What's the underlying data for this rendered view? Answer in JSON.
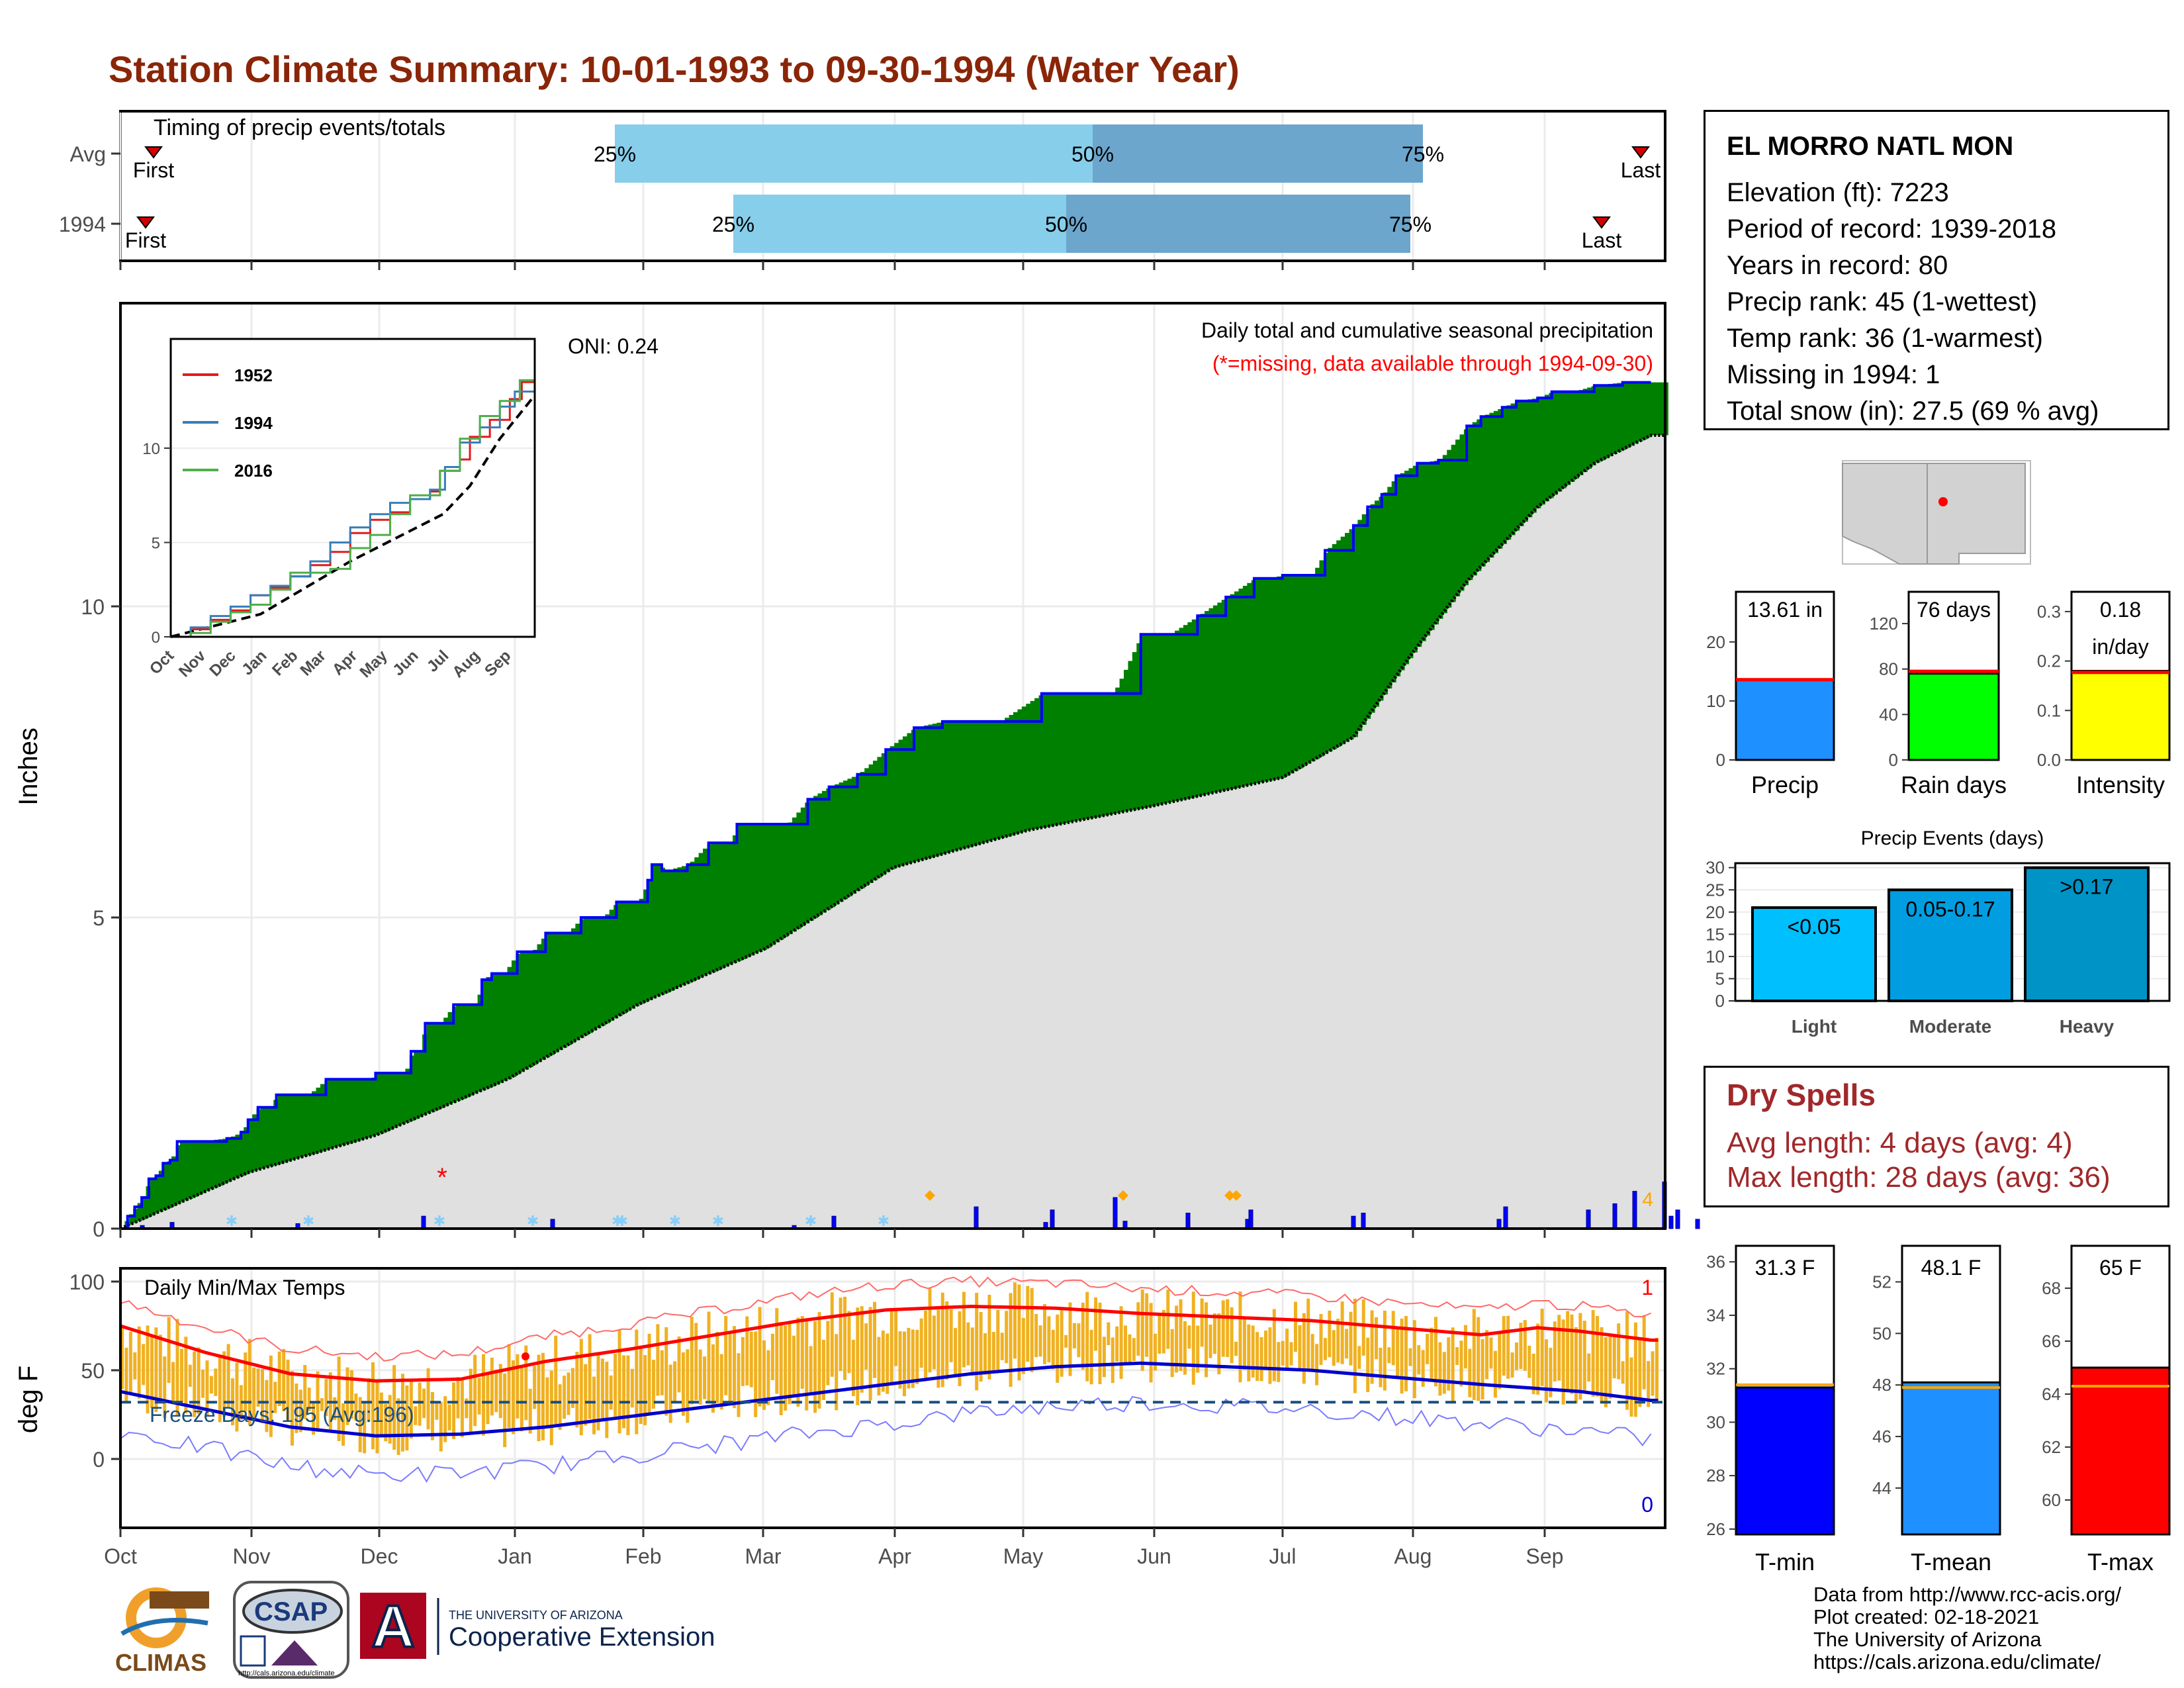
{
  "title": "Station Climate Summary: 10-01-1993 to 09-30-1994 (Water Year)",
  "station": {
    "name": "EL MORRO NATL MON",
    "lines": [
      "Elevation (ft): 7223",
      "Period of record: 1939-2018",
      "Years in record: 80",
      "Precip rank: 45 (1-wettest)",
      "Temp rank: 36 (1-warmest)",
      "Missing in 1994: 1",
      "Total snow (in): 27.5 (69 % avg)"
    ]
  },
  "dry_spells": {
    "title": "Dry Spells",
    "avg_length": "Avg length: 4 days (avg: 4)",
    "max_length": "Max length: 28 days (avg: 36)"
  },
  "credits": [
    "Data from http://www.rcc-acis.org/",
    "Plot created: 02-18-2021",
    "The University of Arizona",
    "https://cals.arizona.edu/climate/"
  ],
  "logos": {
    "climas": "CLIMAS",
    "csap": "CSAP",
    "csap_url": "http://cals.arizona.edu/climate",
    "ua_line1": "THE UNIVERSITY OF ARIZONA",
    "ua_line2": "Cooperative Extension",
    "ua_mark": "A"
  },
  "colors": {
    "title": "#8b2508",
    "above_avg_fill": "#008000",
    "below_avg_fill": "#7f5000",
    "cumulative_line": "#0000ff",
    "climatology_fill": "#e0e0e0",
    "timing_light": "#87ceeb",
    "timing_dark": "#6ca6cd",
    "temp_bar": "#f0b121",
    "tmax_avg": "#ff0000",
    "tmin_avg": "#0000cd"
  },
  "chart_data": [
    {
      "id": "timing",
      "type": "bar",
      "title": "Timing of precip events/totals",
      "rows": [
        {
          "label": "Avg",
          "first": "Oct 9",
          "p25": "Jan 26",
          "p50": "Apr 30",
          "p75": "Jul 31",
          "last": "Sep 29",
          "first_label": "First",
          "last_label": "Last",
          "pct_labels": [
            "25%",
            "50%",
            "75%"
          ]
        },
        {
          "label": "1994",
          "first": "Oct 7",
          "p25": "Feb 23",
          "p50": "Apr 21",
          "p75": "Jul 28",
          "last": "Sep 20",
          "first_label": "First",
          "last_label": "Last",
          "pct_labels": [
            "25%",
            "50%",
            "75%"
          ]
        }
      ]
    },
    {
      "id": "cumulative_precip",
      "type": "area",
      "title": "Daily total and cumulative seasonal precipitation",
      "subtitle": "(*=missing, data available through 1994-09-30)",
      "annotation_oni": "ONI: 0.24",
      "ylabel": "Inches",
      "yticks": [
        0,
        5,
        10
      ],
      "ylim": [
        0,
        14.8
      ],
      "x_months": [
        "Oct",
        "Nov",
        "Dec",
        "Jan",
        "Feb",
        "Mar",
        "Apr",
        "May",
        "Jun",
        "Jul",
        "Aug",
        "Sep"
      ],
      "max_daily_label": "4",
      "missing_marker": "*",
      "cumulative_1994": [
        [
          0,
          0
        ],
        [
          5,
          0.2
        ],
        [
          10,
          0.35
        ],
        [
          15,
          0.5
        ],
        [
          20,
          0.8
        ],
        [
          25,
          0.85
        ],
        [
          30,
          1.05
        ],
        [
          35,
          1.1
        ],
        [
          40,
          1.4
        ],
        [
          55,
          1.4
        ],
        [
          75,
          1.45
        ],
        [
          85,
          1.55
        ],
        [
          90,
          1.75
        ],
        [
          97,
          1.95
        ],
        [
          105,
          1.95
        ],
        [
          110,
          2.15
        ],
        [
          120,
          2.15
        ],
        [
          132,
          2.15
        ],
        [
          145,
          2.4
        ],
        [
          160,
          2.4
        ],
        [
          176,
          2.4
        ],
        [
          180,
          2.5
        ],
        [
          200,
          2.5
        ],
        [
          205,
          2.85
        ],
        [
          210,
          2.85
        ],
        [
          215,
          3.3
        ],
        [
          225,
          3.3
        ],
        [
          235,
          3.6
        ],
        [
          250,
          3.6
        ],
        [
          255,
          4.0
        ],
        [
          262,
          4.1
        ],
        [
          270,
          4.1
        ],
        [
          280,
          4.45
        ],
        [
          290,
          4.45
        ],
        [
          300,
          4.75
        ],
        [
          315,
          4.75
        ],
        [
          325,
          5.0
        ],
        [
          340,
          5.0
        ],
        [
          350,
          5.25
        ],
        [
          365,
          5.25
        ],
        [
          372,
          5.6
        ],
        [
          375,
          5.85
        ],
        [
          380,
          5.85
        ],
        [
          382,
          5.75
        ],
        [
          384,
          5.75
        ],
        [
          400,
          5.85
        ],
        [
          415,
          6.2
        ],
        [
          430,
          6.2
        ],
        [
          435,
          6.5
        ],
        [
          470,
          6.5
        ],
        [
          485,
          6.9
        ],
        [
          500,
          7.1
        ],
        [
          520,
          7.3
        ],
        [
          540,
          7.7
        ],
        [
          560,
          8.05
        ],
        [
          580,
          8.15
        ],
        [
          620,
          8.15
        ],
        [
          650,
          8.6
        ],
        [
          700,
          8.6
        ],
        [
          720,
          9.55
        ],
        [
          740,
          9.55
        ],
        [
          760,
          9.85
        ],
        [
          780,
          10.15
        ],
        [
          800,
          10.45
        ],
        [
          810,
          10.45
        ],
        [
          820,
          10.5
        ],
        [
          840,
          10.5
        ],
        [
          850,
          10.9
        ],
        [
          870,
          11.3
        ],
        [
          880,
          11.6
        ],
        [
          890,
          11.8
        ],
        [
          900,
          12.1
        ],
        [
          915,
          12.3
        ],
        [
          930,
          12.35
        ],
        [
          950,
          12.9
        ],
        [
          960,
          13.05
        ],
        [
          975,
          13.2
        ],
        [
          985,
          13.3
        ],
        [
          1000,
          13.35
        ],
        [
          1010,
          13.45
        ],
        [
          1025,
          13.45
        ],
        [
          1040,
          13.55
        ],
        [
          1060,
          13.6
        ],
        [
          1080,
          13.6
        ]
      ],
      "cumulative_avg": [
        [
          0,
          0
        ],
        [
          90,
          0.9
        ],
        [
          180,
          1.5
        ],
        [
          273,
          2.4
        ],
        [
          365,
          3.6
        ],
        [
          455,
          4.5
        ],
        [
          545,
          5.8
        ],
        [
          640,
          6.4
        ],
        [
          730,
          6.8
        ],
        [
          820,
          7.25
        ],
        [
          870,
          7.9
        ],
        [
          910,
          9.2
        ],
        [
          950,
          10.4
        ],
        [
          1000,
          11.6
        ],
        [
          1040,
          12.3
        ],
        [
          1080,
          12.75
        ]
      ],
      "daily_precip_in": [
        0.05,
        0.1,
        0.08,
        0.2,
        0.15,
        0.05,
        0.2,
        0.35,
        0.1,
        0.3,
        0.5,
        0.12,
        0.25,
        0.15,
        0.3,
        0.2,
        0.25,
        0.15,
        0.35,
        0.3,
        0.4,
        0.6,
        0.75,
        0.2,
        0.3,
        0.15
      ],
      "inset": {
        "type": "line",
        "series": [
          {
            "name": "1952",
            "color": "#e41a1c"
          },
          {
            "name": "1994",
            "color": "#377eb8"
          },
          {
            "name": "2016",
            "color": "#4daf4a"
          }
        ],
        "yticks": [
          0,
          5,
          10
        ],
        "x_months": [
          "Oct",
          "Nov",
          "Dec",
          "Jan",
          "Feb",
          "Mar",
          "Apr",
          "May",
          "Jun",
          "Jul",
          "Aug",
          "Sep"
        ]
      }
    },
    {
      "id": "daily_temps",
      "type": "bar",
      "title": "Daily Min/Max Temps",
      "ylabel": "deg F",
      "yticks": [
        0,
        50,
        100
      ],
      "ylim": [
        -40,
        105
      ],
      "freeze_label": "Freeze Days: 195 (Avg:196)",
      "freeze_line": 32,
      "record_high_count": "1",
      "record_low_count": "0",
      "x_months": [
        "Oct",
        "Nov",
        "Dec",
        "Jan",
        "Feb",
        "Mar",
        "Apr",
        "May",
        "Jun",
        "Jul",
        "Aug",
        "Sep"
      ],
      "avg_tmax": [
        [
          0,
          75
        ],
        [
          60,
          60
        ],
        [
          120,
          48
        ],
        [
          180,
          44
        ],
        [
          240,
          45
        ],
        [
          300,
          55
        ],
        [
          360,
          62
        ],
        [
          420,
          70
        ],
        [
          480,
          78
        ],
        [
          540,
          84
        ],
        [
          600,
          86
        ],
        [
          660,
          85
        ],
        [
          720,
          82
        ],
        [
          780,
          80
        ],
        [
          840,
          78
        ],
        [
          900,
          74
        ],
        [
          960,
          70
        ],
        [
          1000,
          74
        ],
        [
          1030,
          72
        ],
        [
          1080,
          67
        ]
      ],
      "avg_tmin": [
        [
          0,
          38
        ],
        [
          60,
          28
        ],
        [
          120,
          18
        ],
        [
          180,
          13
        ],
        [
          240,
          14
        ],
        [
          300,
          18
        ],
        [
          360,
          24
        ],
        [
          420,
          30
        ],
        [
          480,
          36
        ],
        [
          540,
          42
        ],
        [
          600,
          48
        ],
        [
          660,
          52
        ],
        [
          720,
          54
        ],
        [
          780,
          52
        ],
        [
          840,
          50
        ],
        [
          900,
          46
        ],
        [
          960,
          42
        ],
        [
          1030,
          38
        ],
        [
          1080,
          33
        ]
      ]
    },
    {
      "id": "precip_summary",
      "type": "bar",
      "panels": [
        {
          "label": "Precip",
          "value": 13.61,
          "value_label": "13.61 in",
          "avg": 13.6,
          "yticks": [
            0,
            10,
            20
          ],
          "ylim": [
            0,
            28.5
          ],
          "color": "#1e90ff"
        },
        {
          "label": "Rain days",
          "value": 76,
          "value_label": "76 days",
          "avg": 78,
          "yticks": [
            0,
            40,
            80,
            120
          ],
          "ylim": [
            0,
            148
          ],
          "color": "#00ff00"
        },
        {
          "label": "Intensity",
          "value": 0.18,
          "value_label": "0.18",
          "unit_label": "in/day",
          "avg": 0.177,
          "yticks": [
            0.0,
            0.1,
            0.2,
            0.3
          ],
          "ylim": [
            0,
            0.34
          ],
          "color": "#ffff00"
        }
      ]
    },
    {
      "id": "precip_events",
      "type": "bar",
      "title": "Precip Events (days)",
      "categories": [
        "Light",
        "Moderate",
        "Heavy"
      ],
      "bin_labels": [
        "<0.05",
        "0.05-0.17",
        ">0.17"
      ],
      "values": [
        21,
        25,
        30
      ],
      "yticks": [
        0,
        5,
        10,
        15,
        20,
        25,
        30
      ],
      "ylim": [
        0,
        31
      ],
      "colors": [
        "#00bfff",
        "#009ee0",
        "#0093c6"
      ]
    },
    {
      "id": "temp_summary",
      "type": "bar",
      "panels": [
        {
          "label": "T-min",
          "value": 31.3,
          "value_label": "31.3 F",
          "avg": 31.4,
          "yticks": [
            26,
            28,
            30,
            32,
            34,
            36
          ],
          "ylim": [
            25.8,
            36.6
          ],
          "color": "#0000ff"
        },
        {
          "label": "T-mean",
          "value": 48.1,
          "value_label": "48.1 F",
          "avg": 47.9,
          "yticks": [
            44,
            46,
            48,
            50,
            52
          ],
          "ylim": [
            42.2,
            53.4
          ],
          "color": "#1e90ff"
        },
        {
          "label": "T-max",
          "value": 65,
          "value_label": "65 F",
          "avg": 64.3,
          "yticks": [
            60,
            62,
            64,
            66,
            68
          ],
          "ylim": [
            58.7,
            69.6
          ],
          "color": "#ff0000"
        }
      ]
    }
  ]
}
